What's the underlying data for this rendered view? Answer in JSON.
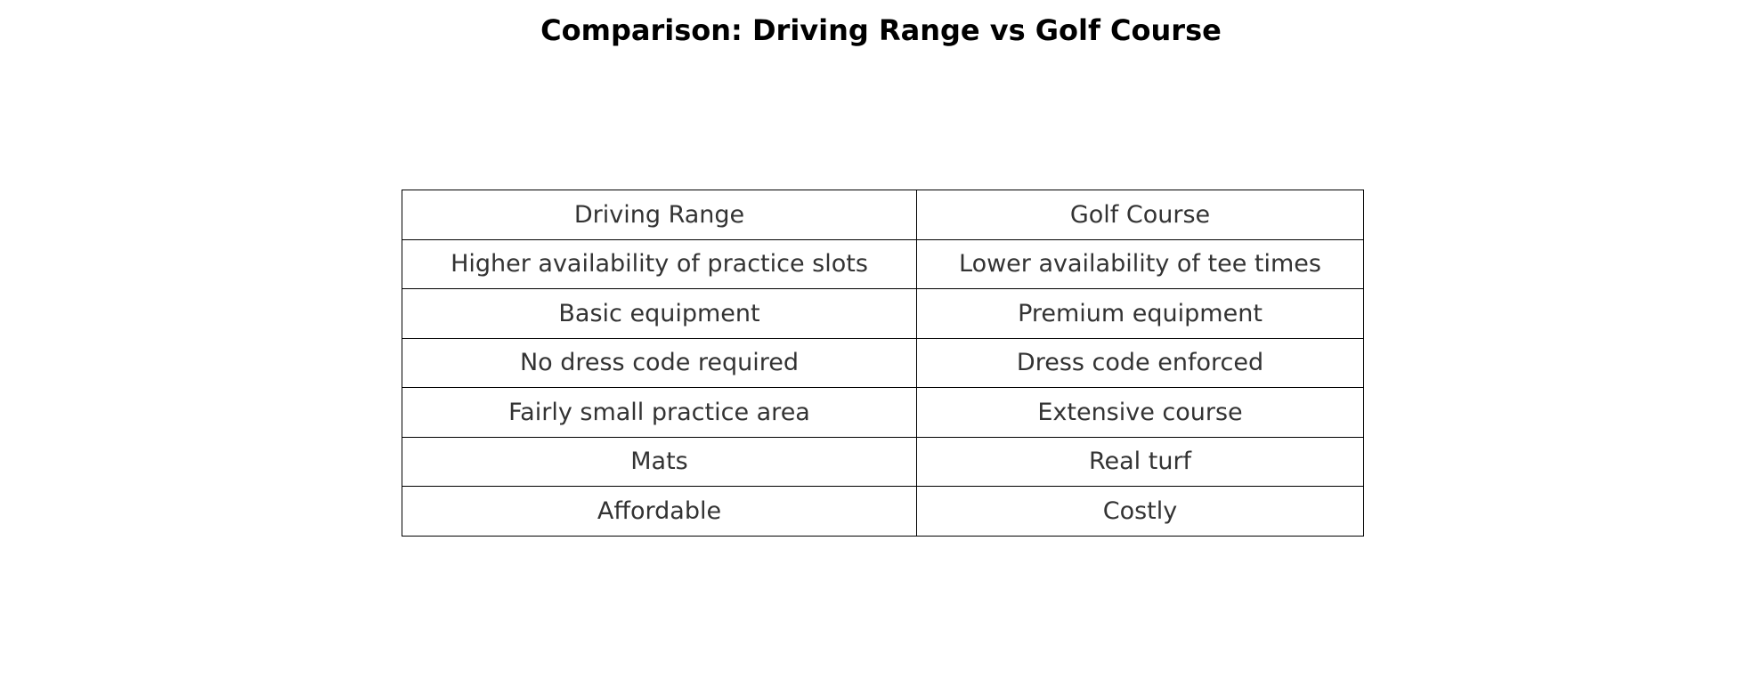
{
  "chart_data": {
    "type": "table",
    "title": "Comparison: Driving Range vs Golf Course",
    "columns": [
      "Driving Range",
      "Golf Course"
    ],
    "rows": [
      [
        "Higher availability of practice slots",
        "Lower availability of tee times"
      ],
      [
        "Basic equipment",
        "Premium equipment"
      ],
      [
        "No dress code required",
        "Dress code enforced"
      ],
      [
        "Fairly small practice area",
        "Extensive course"
      ],
      [
        "Mats",
        "Real turf"
      ],
      [
        "Affordable",
        "Costly"
      ]
    ],
    "colors": {
      "border": "#000000",
      "cell_text": "#333333",
      "title_text": "#000000",
      "background": "#ffffff"
    }
  }
}
